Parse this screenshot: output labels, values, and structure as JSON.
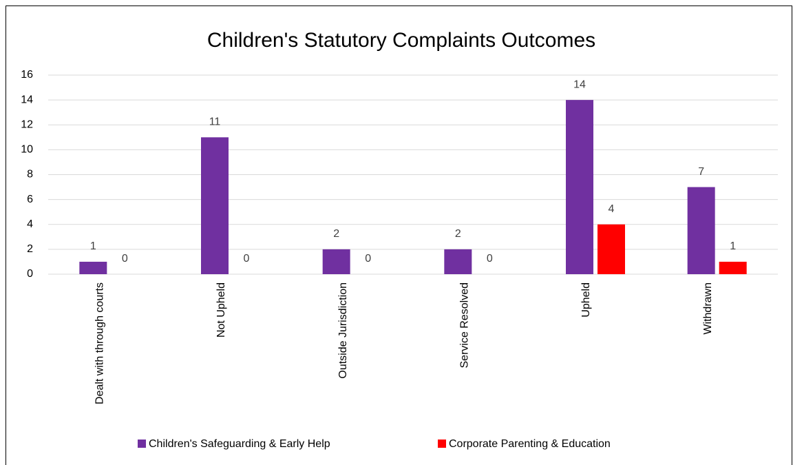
{
  "chart_data": {
    "type": "bar",
    "title": "Children's Statutory Complaints Outcomes",
    "categories": [
      "Dealt with through courts",
      "Not Upheld",
      "Outside Jurisdiction",
      "Service Resolved",
      "Upheld",
      "Withdrawn"
    ],
    "series": [
      {
        "name": "Children's Safeguarding & Early Help",
        "color": "#7030a0",
        "values": [
          1,
          11,
          2,
          2,
          14,
          7
        ]
      },
      {
        "name": "Corporate Parenting & Education",
        "color": "#ff0000",
        "values": [
          0,
          0,
          0,
          0,
          4,
          1
        ]
      }
    ],
    "ylim": [
      0,
      16
    ],
    "yticks": [
      0,
      2,
      4,
      6,
      8,
      10,
      12,
      14,
      16
    ],
    "grid": true,
    "legend": "bottom"
  }
}
